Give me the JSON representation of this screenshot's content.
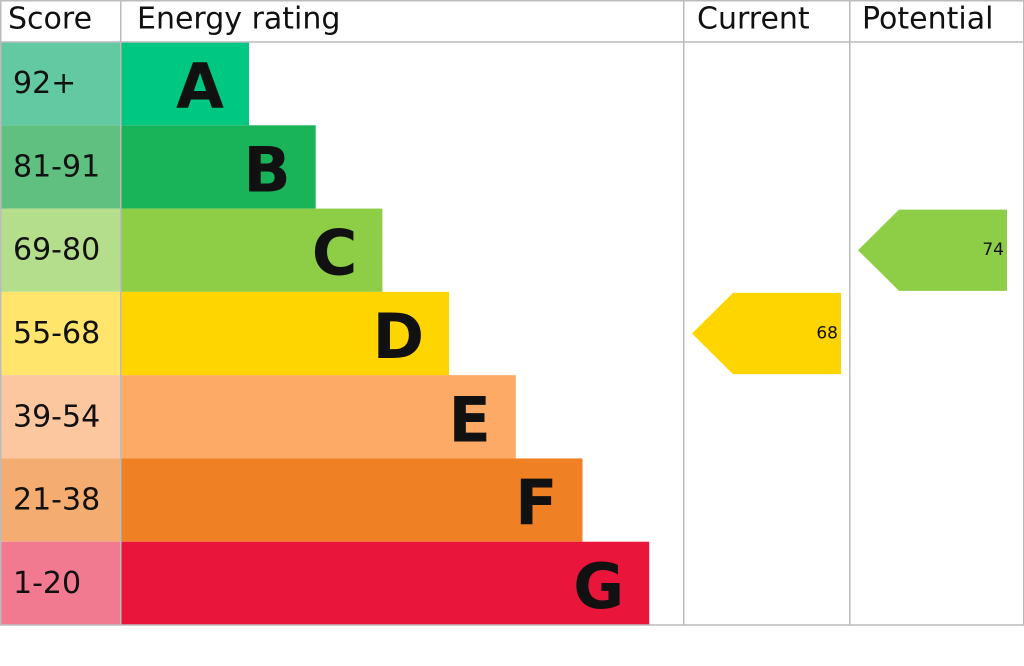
{
  "chart_data": {
    "type": "epc",
    "headers": [
      "Score",
      "Energy rating",
      "Current",
      "Potential"
    ],
    "bands": [
      {
        "score": "92+",
        "letter": "A",
        "color": "#00c781",
        "score_color": "#62c9a2"
      },
      {
        "score": "81-91",
        "letter": "B",
        "color": "#19b459",
        "score_color": "#5fc080"
      },
      {
        "score": "69-80",
        "letter": "C",
        "color": "#8dce46",
        "score_color": "#b5de8c"
      },
      {
        "score": "55-68",
        "letter": "D",
        "color": "#ffd500",
        "score_color": "#ffe56b"
      },
      {
        "score": "39-54",
        "letter": "E",
        "color": "#fcaa65",
        "score_color": "#fcc79f"
      },
      {
        "score": "21-38",
        "letter": "F",
        "color": "#ef8023",
        "score_color": "#f4ac70"
      },
      {
        "score": "1-20",
        "letter": "G",
        "color": "#e9153b",
        "score_color": "#f27a90"
      }
    ],
    "current": 68,
    "potential": 74
  }
}
